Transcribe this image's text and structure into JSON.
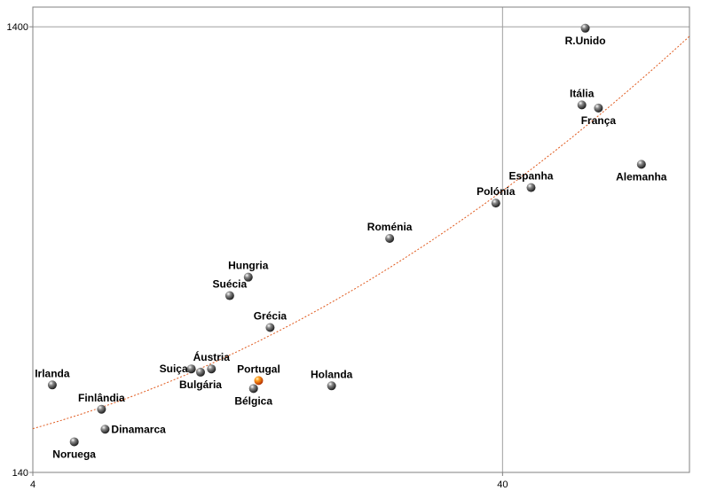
{
  "chart_data": {
    "type": "scatter",
    "x_scale": "log",
    "y_scale": "log",
    "xlim": [
      4,
      100
    ],
    "ylim": [
      140,
      1550
    ],
    "x_ticks": [
      {
        "value": 4,
        "label": "4"
      },
      {
        "value": 40,
        "label": "40"
      }
    ],
    "y_ticks": [
      {
        "value": 140,
        "label": "140"
      },
      {
        "value": 1400,
        "label": "1400"
      }
    ],
    "grid": {
      "horizontal": true,
      "vertical": true
    },
    "trendline": {
      "type": "polynomial",
      "color": "#e05a1e",
      "style": "dotted"
    },
    "points": [
      {
        "name": "R.Unido",
        "x": 60,
        "y": 1390,
        "highlight": false,
        "label_pos": "below"
      },
      {
        "name": "Itália",
        "x": 59,
        "y": 935,
        "highlight": false,
        "label_pos": "above"
      },
      {
        "name": "França",
        "x": 64,
        "y": 920,
        "highlight": false,
        "label_pos": "below"
      },
      {
        "name": "Alemanha",
        "x": 79,
        "y": 688,
        "highlight": false,
        "label_pos": "below"
      },
      {
        "name": "Espanha",
        "x": 46,
        "y": 610,
        "highlight": false,
        "label_pos": "above"
      },
      {
        "name": "Polónia",
        "x": 38.7,
        "y": 563,
        "highlight": false,
        "label_pos": "above"
      },
      {
        "name": "Roménia",
        "x": 23,
        "y": 469,
        "highlight": false,
        "label_pos": "above"
      },
      {
        "name": "Hungria",
        "x": 11.5,
        "y": 384,
        "highlight": false,
        "label_pos": "above"
      },
      {
        "name": "Suécia",
        "x": 10.5,
        "y": 349,
        "highlight": false,
        "label_pos": "above"
      },
      {
        "name": "Grécia",
        "x": 12.8,
        "y": 296,
        "highlight": false,
        "label_pos": "above"
      },
      {
        "name": "Áustria",
        "x": 9.6,
        "y": 239,
        "highlight": false,
        "label_pos": "above"
      },
      {
        "name": "Suiça",
        "x": 8.7,
        "y": 239,
        "highlight": false,
        "label_pos": "left"
      },
      {
        "name": "Bulgária",
        "x": 9.1,
        "y": 235,
        "highlight": false,
        "label_pos": "below"
      },
      {
        "name": "Portugal",
        "x": 12.1,
        "y": 225,
        "highlight": true,
        "label_pos": "above"
      },
      {
        "name": "Bélgica",
        "x": 11.8,
        "y": 216,
        "highlight": false,
        "label_pos": "below"
      },
      {
        "name": "Holanda",
        "x": 17.3,
        "y": 219,
        "highlight": false,
        "label_pos": "above"
      },
      {
        "name": "Irlanda",
        "x": 4.4,
        "y": 220,
        "highlight": false,
        "label_pos": "above"
      },
      {
        "name": "Finlândia",
        "x": 5.6,
        "y": 194,
        "highlight": false,
        "label_pos": "above"
      },
      {
        "name": "Dinamarca",
        "x": 5.7,
        "y": 175,
        "highlight": false,
        "label_pos": "right"
      },
      {
        "name": "Noruega",
        "x": 4.9,
        "y": 164,
        "highlight": false,
        "label_pos": "below"
      }
    ]
  }
}
